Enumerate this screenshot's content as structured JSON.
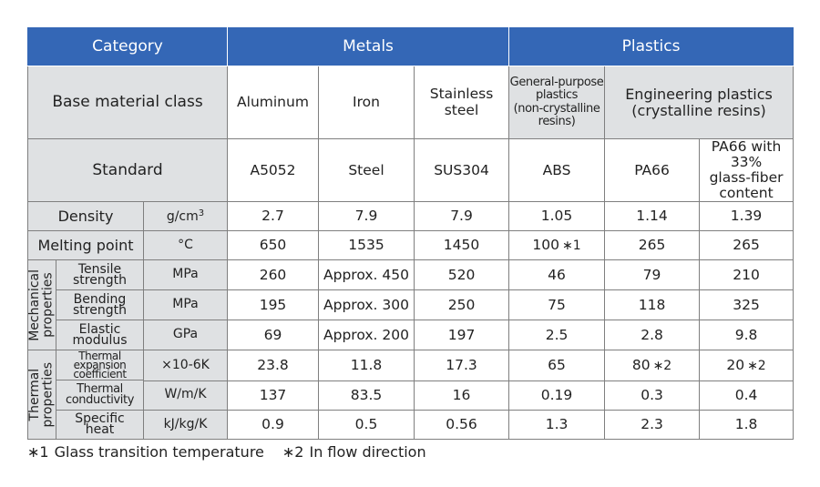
{
  "header": {
    "category": "Category",
    "metals": "Metals",
    "plastics": "Plastics"
  },
  "base_row": {
    "label": "Base material class",
    "aluminum": "Aluminum",
    "iron": "Iron",
    "stainless_1": "Stainless",
    "stainless_2": "steel",
    "general_1": "General-purpose",
    "general_2": "plastics",
    "general_3": "(non-crystalline",
    "general_4": "resins)",
    "engineering_1": "Engineering plastics",
    "engineering_2": "(crystalline resins)"
  },
  "standard_row": {
    "label": "Standard",
    "values": [
      "A5052",
      "Steel",
      "SUS304",
      "ABS",
      "PA66"
    ],
    "pa66gf_1": "PA66 with 33%",
    "pa66gf_2": "glass-fiber",
    "pa66gf_3": "content"
  },
  "density": {
    "label": "Density",
    "unit": "g/cm",
    "unit_sup": "3",
    "values": [
      "2.7",
      "7.9",
      "7.9",
      "1.05",
      "1.14",
      "1.39"
    ]
  },
  "melting": {
    "label": "Melting point",
    "unit": "°C",
    "values": [
      "650",
      "1535",
      "1450",
      "100",
      "265",
      "265"
    ],
    "abs_mark": "∗1"
  },
  "mechanical": {
    "group_1": "Mechanical",
    "group_2": "properties",
    "tensile": {
      "label_1": "Tensile",
      "label_2": "strength",
      "unit": "MPa",
      "values": [
        "260",
        "Approx. 450",
        "520",
        "46",
        "79",
        "210"
      ]
    },
    "bending": {
      "label_1": "Bending",
      "label_2": "strength",
      "unit": "MPa",
      "values": [
        "195",
        "Approx. 300",
        "250",
        "75",
        "118",
        "325"
      ]
    },
    "elastic": {
      "label_1": "Elastic",
      "label_2": "modulus",
      "unit": "GPa",
      "values": [
        "69",
        "Approx. 200",
        "197",
        "2.5",
        "2.8",
        "9.8"
      ]
    }
  },
  "thermal": {
    "group_1": "Thermal",
    "group_2": "properties",
    "expansion": {
      "label_1": "Thermal",
      "label_2": "expansion",
      "label_3": "coefficient",
      "unit": "×10-6K",
      "values": [
        "23.8",
        "11.8",
        "17.3",
        "65",
        "80",
        "20"
      ],
      "mark": "∗2"
    },
    "conductivity": {
      "label_1": "Thermal",
      "label_2": "conductivity",
      "unit": "W/m/K",
      "values": [
        "137",
        "83.5",
        "16",
        "0.19",
        "0.3",
        "0.4"
      ]
    },
    "specific_heat": {
      "label_1": "Specific",
      "label_2": "heat",
      "unit": "kJ/kg/K",
      "values": [
        "0.9",
        "0.5",
        "0.56",
        "1.3",
        "2.3",
        "1.8"
      ]
    }
  },
  "footnotes": {
    "note1_mark": "∗1",
    "note1_text": "Glass transition temperature",
    "note2_mark": "∗2",
    "note2_text": "In flow direction"
  },
  "colors": {
    "header_bg": "#3467b6",
    "label_bg": "#dfe1e3",
    "value_bg": "#ffffff",
    "border": "#7f7f7f"
  }
}
